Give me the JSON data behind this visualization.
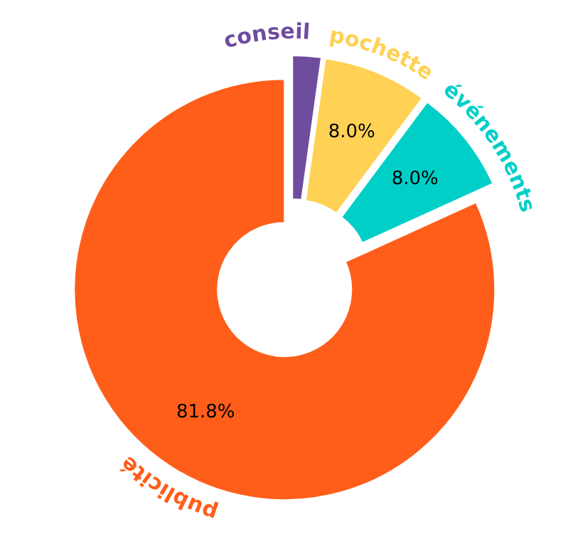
{
  "chart_data": {
    "type": "donut",
    "categories": [
      "conseil",
      "pochette",
      "événements",
      "publicité"
    ],
    "values": [
      2.2,
      8.0,
      8.0,
      81.8
    ],
    "colors": [
      "#6e4c9e",
      "#ffd154",
      "#00cfc8",
      "#ff5e1a"
    ],
    "value_labels": [
      null,
      "8.0%",
      "8.0%",
      "81.8%"
    ]
  }
}
